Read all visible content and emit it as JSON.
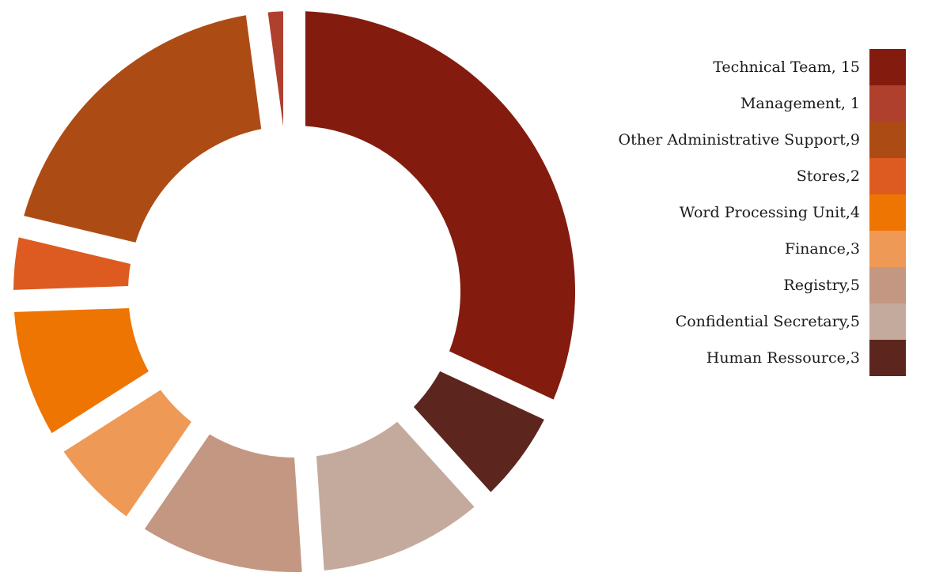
{
  "chart_data": {
    "type": "pie",
    "style": "donut-exploded",
    "title": "",
    "categories": [
      "Technical Team",
      "Human Ressource",
      "Confidential Secretary",
      "Registry",
      "Finance",
      "Word Processing Unit",
      "Stores",
      "Other Administrative Support",
      "Management"
    ],
    "values": [
      15,
      3,
      5,
      5,
      3,
      4,
      2,
      9,
      1
    ],
    "colors": [
      "#831c0f",
      "#5c261f",
      "#c4aa9c",
      "#c39782",
      "#ef9956",
      "#ee7502",
      "#dd5b21",
      "#ad4b14",
      "#b0402e"
    ],
    "start_direction": "clockwise-from-top",
    "legend_position": "right"
  },
  "legend": {
    "items": [
      {
        "label": "Technical Team,  15",
        "color": "#831c0f"
      },
      {
        "label": "Management,  1",
        "color": "#b0402e"
      },
      {
        "label": "Other Administrative Support,9",
        "color": "#ad4b14"
      },
      {
        "label": "Stores,2",
        "color": "#dd5b21"
      },
      {
        "label": "Word Processing Unit,4",
        "color": "#ee7502"
      },
      {
        "label": "Finance,3",
        "color": "#ef9956"
      },
      {
        "label": "Registry,5",
        "color": "#c39782"
      },
      {
        "label": "Confidential Secretary,5",
        "color": "#c4aa9c"
      },
      {
        "label": "Human Ressource,3",
        "color": "#5c261f"
      }
    ]
  }
}
